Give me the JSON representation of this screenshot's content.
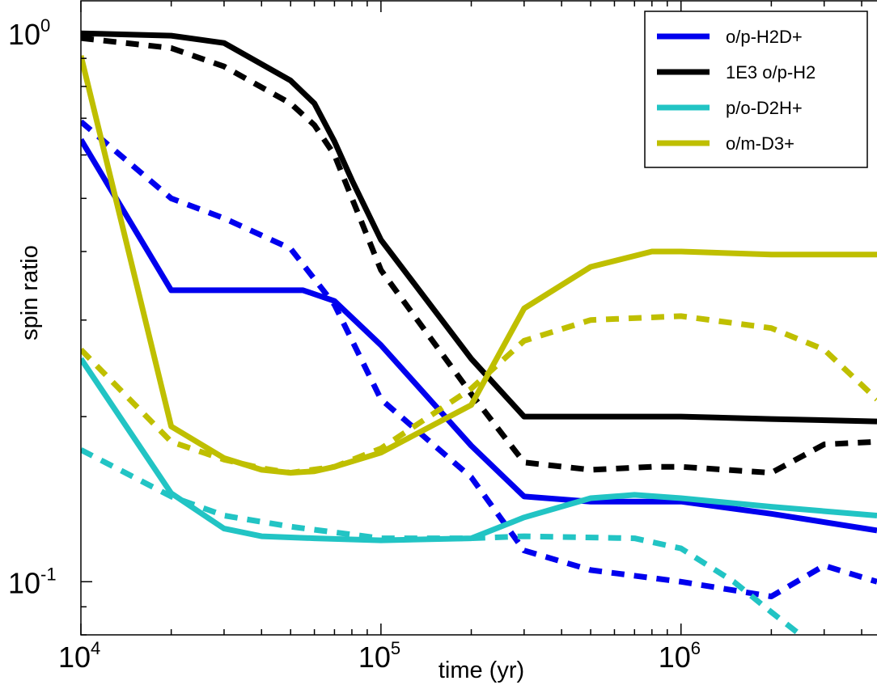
{
  "chart_data": {
    "type": "line",
    "xlabel": "time (yr)",
    "ylabel": "spin ratio",
    "x_scale": "log",
    "y_scale": "log",
    "xlim": [
      10000,
      4500000
    ],
    "ylim": [
      0.08,
      1.15
    ],
    "x_ticks": [
      {
        "value": 10000,
        "base": "10",
        "exp": "4"
      },
      {
        "value": 100000,
        "base": "10",
        "exp": "5"
      },
      {
        "value": 1000000,
        "base": "10",
        "exp": "6"
      }
    ],
    "y_ticks": [
      {
        "value": 1.0,
        "base": "10",
        "exp": "0"
      },
      {
        "value": 0.1,
        "base": "10",
        "exp": "-1"
      }
    ],
    "legend_position": "top-right",
    "legend": [
      {
        "label": "o/p-H2D+",
        "color": "#0000ee"
      },
      {
        "label": "1E3 o/p-H2",
        "color": "#000000"
      },
      {
        "label": "p/o-D2H+",
        "color": "#22c4c4"
      },
      {
        "label": "o/m-D3+",
        "color": "#bfbf00"
      }
    ],
    "series": [
      {
        "name": "o/p-H2D+",
        "style": "solid",
        "color": "#0000ee",
        "x": [
          10000,
          20000,
          30000,
          40000,
          55000,
          70000,
          100000,
          200000,
          300000,
          500000,
          1000000,
          2000000,
          4500000
        ],
        "y": [
          0.64,
          0.34,
          0.34,
          0.34,
          0.34,
          0.325,
          0.27,
          0.177,
          0.143,
          0.14,
          0.14,
          0.133,
          0.124
        ]
      },
      {
        "name": "o/p-H2D+",
        "style": "dashed",
        "color": "#0000ee",
        "x": [
          10000,
          20000,
          30000,
          50000,
          70000,
          100000,
          200000,
          300000,
          500000,
          1000000,
          2000000,
          3000000,
          4500000
        ],
        "y": [
          0.69,
          0.5,
          0.46,
          0.405,
          0.32,
          0.215,
          0.155,
          0.114,
          0.105,
          0.1,
          0.094,
          0.107,
          0.1
        ]
      },
      {
        "name": "1E3 o/p-H2",
        "style": "solid",
        "color": "#000000",
        "x": [
          10000,
          20000,
          30000,
          50000,
          60000,
          70000,
          80000,
          100000,
          200000,
          300000,
          500000,
          700000,
          1000000,
          2000000,
          4500000
        ],
        "y": [
          1.0,
          0.99,
          0.96,
          0.82,
          0.745,
          0.635,
          0.54,
          0.42,
          0.255,
          0.2,
          0.2,
          0.2,
          0.2,
          0.198,
          0.196
        ]
      },
      {
        "name": "1E3 o/p-H2",
        "style": "dashed",
        "color": "#000000",
        "x": [
          10000,
          20000,
          30000,
          50000,
          60000,
          70000,
          100000,
          200000,
          300000,
          500000,
          800000,
          1000000,
          2000000,
          3000000,
          4500000
        ],
        "y": [
          0.98,
          0.94,
          0.87,
          0.745,
          0.68,
          0.6,
          0.37,
          0.22,
          0.165,
          0.16,
          0.162,
          0.162,
          0.158,
          0.178,
          0.18
        ]
      },
      {
        "name": "p/o-D2H+",
        "style": "solid",
        "color": "#22c4c4",
        "x": [
          10000,
          20000,
          30000,
          40000,
          60000,
          100000,
          200000,
          300000,
          500000,
          700000,
          1000000,
          2000000,
          4500000
        ],
        "y": [
          0.255,
          0.145,
          0.125,
          0.121,
          0.12,
          0.119,
          0.12,
          0.131,
          0.142,
          0.144,
          0.142,
          0.137,
          0.132
        ]
      },
      {
        "name": "p/o-D2H+",
        "style": "dashed",
        "color": "#22c4c4",
        "x": [
          10000,
          20000,
          30000,
          50000,
          100000,
          200000,
          300000,
          700000,
          1000000,
          1500000,
          2000000,
          2500000
        ],
        "y": [
          0.174,
          0.143,
          0.132,
          0.126,
          0.12,
          0.12,
          0.121,
          0.12,
          0.115,
          0.1,
          0.088,
          0.08
        ]
      },
      {
        "name": "o/m-D3+",
        "style": "solid",
        "color": "#bfbf00",
        "x": [
          10000,
          20000,
          30000,
          40000,
          50000,
          60000,
          70000,
          100000,
          200000,
          300000,
          500000,
          800000,
          1000000,
          2000000,
          4500000
        ],
        "y": [
          0.91,
          0.192,
          0.168,
          0.16,
          0.158,
          0.159,
          0.162,
          0.172,
          0.21,
          0.315,
          0.375,
          0.4,
          0.4,
          0.395,
          0.395
        ]
      },
      {
        "name": "o/m-D3+",
        "style": "dashed",
        "color": "#bfbf00",
        "x": [
          10000,
          20000,
          30000,
          40000,
          50000,
          70000,
          100000,
          200000,
          300000,
          500000,
          1000000,
          2000000,
          3000000,
          4500000
        ],
        "y": [
          0.265,
          0.18,
          0.167,
          0.161,
          0.158,
          0.162,
          0.175,
          0.225,
          0.275,
          0.3,
          0.305,
          0.29,
          0.265,
          0.215
        ]
      }
    ]
  }
}
